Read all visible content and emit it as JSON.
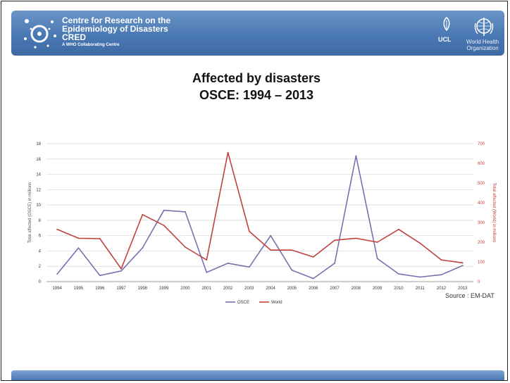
{
  "header": {
    "org_line1": "Centre for Research on the",
    "org_line2": "Epidemiology of Disasters",
    "org_line3": "CRED",
    "org_line4": "A WHO Collaborating Centre",
    "ucl_label": "UCL",
    "who_line1": "World Health",
    "who_line2": "Organization"
  },
  "source": "Source : EM-DAT",
  "colors": {
    "osce": "#7a6fb0",
    "world": "#c0423f",
    "header": "#4a78b3"
  },
  "chart_data": {
    "type": "line",
    "title": "Affected by disasters",
    "subtitle": "OSCE: 1994 – 2013",
    "ylabel": "Total affected (OSCE) in millions",
    "y2label": "Total affected (World) in millions",
    "ylim": [
      0,
      18
    ],
    "y2lim": [
      0,
      700
    ],
    "yticks": [
      "0",
      "2",
      "4",
      "6",
      "8",
      "10",
      "12",
      "14",
      "16",
      "18"
    ],
    "y2ticks": [
      "0",
      "100",
      "200",
      "300",
      "400",
      "500",
      "600",
      "700"
    ],
    "categories": [
      "1994",
      "1995",
      "1996",
      "1997",
      "1998",
      "1999",
      "2000",
      "2001",
      "2002",
      "2003",
      "2004",
      "2005",
      "2006",
      "2007",
      "2008",
      "2009",
      "2010",
      "2011",
      "2012",
      "2013"
    ],
    "series": [
      {
        "name": "OSCE",
        "axis": "left",
        "values": [
          1.0,
          4.4,
          0.8,
          1.4,
          4.4,
          9.3,
          9.1,
          1.2,
          2.4,
          1.9,
          6.0,
          1.5,
          0.4,
          2.4,
          16.4,
          3.0,
          1.0,
          0.6,
          0.9,
          2.1
        ]
      },
      {
        "name": "World",
        "axis": "right",
        "values": [
          265,
          220,
          218,
          65,
          340,
          285,
          175,
          110,
          655,
          255,
          160,
          160,
          125,
          210,
          220,
          200,
          265,
          195,
          110,
          95
        ]
      }
    ],
    "legend": "bottom-center",
    "grid": true
  }
}
